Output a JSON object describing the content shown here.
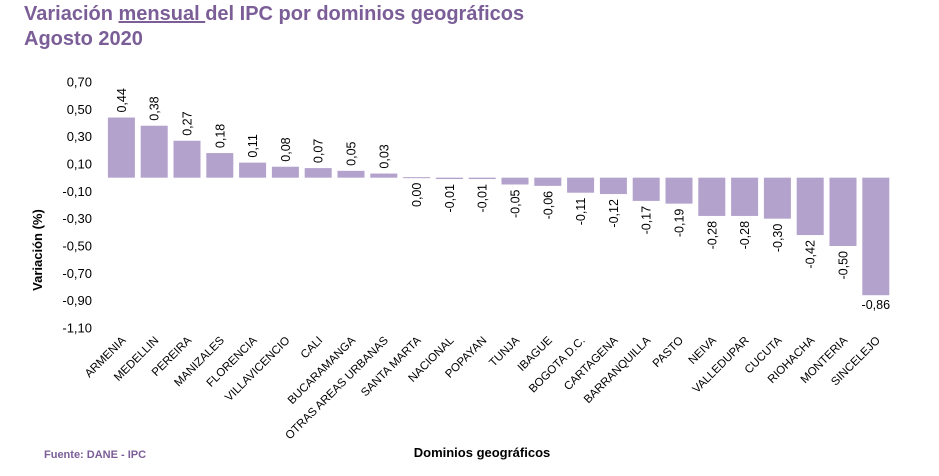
{
  "header": {
    "title_part1": "Variación ",
    "title_underlined": "mensual ",
    "title_part2": "del IPC por dominios geográficos",
    "subtitle": "Agosto 2020"
  },
  "footer": {
    "source": "Fuente: DANE - IPC"
  },
  "chart_data": {
    "type": "bar",
    "title": "Variación mensual del IPC por dominios geográficos",
    "subtitle": "Agosto 2020",
    "xlabel": "Dominios geográficos",
    "ylabel": "Variación (%)",
    "ylim": [
      -1.1,
      0.7
    ],
    "yticks": [
      "0,70",
      "0,50",
      "0,30",
      "0,10",
      "-0,10",
      "-0,30",
      "-0,50",
      "-0,70",
      "-0,90",
      "-1,10"
    ],
    "ytick_values": [
      0.7,
      0.5,
      0.3,
      0.1,
      -0.1,
      -0.3,
      -0.5,
      -0.7,
      -0.9,
      -1.1
    ],
    "grid": false,
    "bar_color": "#B3A2CB",
    "categories": [
      "ARMENIA",
      "MEDELLIN",
      "PEREIRA",
      "MANIZALES",
      "FLORENCIA",
      "VILLAVICENCIO",
      "CALI",
      "BUCARAMANGA",
      "OTRAS AREAS URBANAS",
      "SANTA MARTA",
      "NACIONAL",
      "POPAYAN",
      "TUNJA",
      "IBAGUE",
      "BOGOTA D.C.",
      "CARTAGENA",
      "BARRANQUILLA",
      "PASTO",
      "NEIVA",
      "VALLEDUPAR",
      "CUCUTA",
      "RIOHACHA",
      "MONTERIA",
      "SINCELEJO"
    ],
    "values": [
      0.44,
      0.38,
      0.27,
      0.18,
      0.11,
      0.08,
      0.07,
      0.05,
      0.03,
      0.0,
      -0.01,
      -0.01,
      -0.05,
      -0.06,
      -0.11,
      -0.12,
      -0.17,
      -0.19,
      -0.28,
      -0.28,
      -0.3,
      -0.42,
      -0.5,
      -0.86
    ],
    "labels": [
      "0,44",
      "0,38",
      "0,27",
      "0,18",
      "0,11",
      "0,08",
      "0,07",
      "0,05",
      "0,03",
      "0,00",
      "-0,01",
      "-0,01",
      "-0,05",
      "-0,06",
      "-0,11",
      "-0,12",
      "-0,17",
      "-0,19",
      "-0,28",
      "-0,28",
      "-0,30",
      "-0,42",
      "-0,50",
      "-0,86"
    ]
  }
}
